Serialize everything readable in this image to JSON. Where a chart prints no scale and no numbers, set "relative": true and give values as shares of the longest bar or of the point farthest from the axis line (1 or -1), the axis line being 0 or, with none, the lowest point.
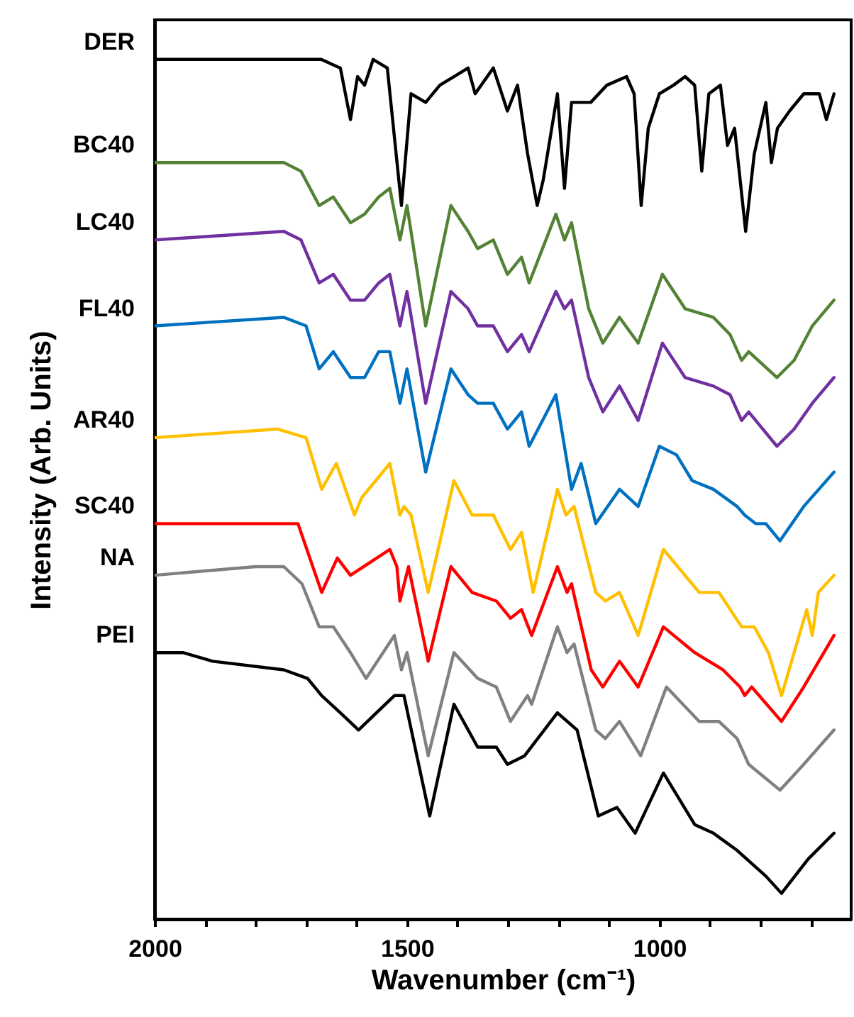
{
  "chart_data": {
    "type": "line",
    "relative": true,
    "xlabel": "Wavenumber (cm⁻¹)",
    "ylabel": "Intensity (Arb. Units)",
    "xlim": [
      2000,
      620
    ],
    "xticks": [
      2000,
      {
        "value": 1900,
        "label": null
      },
      {
        "value": 1800,
        "label": null
      },
      {
        "value": 1700,
        "label": null
      },
      {
        "value": 1600,
        "label": null
      },
      1500,
      {
        "value": 1400,
        "label": null
      },
      {
        "value": 1300,
        "label": null
      },
      {
        "value": 1200,
        "label": null
      },
      {
        "value": 1100,
        "label": null
      },
      1000,
      {
        "value": 900,
        "label": null
      },
      {
        "value": 800,
        "label": null
      },
      {
        "value": 700,
        "label": null
      }
    ],
    "series": [
      {
        "name": "DER",
        "color": "#000000",
        "x": [
          2000,
          1880,
          1670,
          1632,
          1612,
          1598,
          1584,
          1567,
          1539,
          1511,
          1492,
          1463,
          1435,
          1407,
          1379,
          1365,
          1329,
          1301,
          1281,
          1261,
          1242,
          1230,
          1202,
          1188,
          1174,
          1136,
          1104,
          1065,
          1050,
          1036,
          1022,
          1000,
          972,
          949,
          930,
          916,
          902,
          879,
          865,
          851,
          829,
          812,
          789,
          778,
          766,
          742,
          714,
          683,
          669,
          654
        ],
        "values": [
          1.0,
          1.0,
          1.0,
          0.99,
          0.93,
          0.98,
          0.97,
          1.0,
          0.99,
          0.83,
          0.96,
          0.95,
          0.97,
          0.98,
          0.99,
          0.96,
          0.99,
          0.94,
          0.97,
          0.89,
          0.83,
          0.86,
          0.96,
          0.85,
          0.95,
          0.95,
          0.97,
          0.98,
          0.96,
          0.83,
          0.92,
          0.96,
          0.97,
          0.98,
          0.97,
          0.87,
          0.96,
          0.97,
          0.9,
          0.92,
          0.8,
          0.89,
          0.95,
          0.88,
          0.92,
          0.94,
          0.96,
          0.96,
          0.93,
          0.96
        ]
      },
      {
        "name": "BC40",
        "color": "#548235",
        "x": [
          2000,
          1744,
          1710,
          1674,
          1646,
          1612,
          1584,
          1556,
          1534,
          1514,
          1500,
          1463,
          1413,
          1379,
          1360,
          1329,
          1301,
          1273,
          1258,
          1205,
          1188,
          1174,
          1140,
          1112,
          1079,
          1042,
          994,
          949,
          893,
          860,
          837,
          823,
          767,
          733,
          697,
          654
        ],
        "values": [
          0.88,
          0.88,
          0.87,
          0.83,
          0.84,
          0.81,
          0.82,
          0.84,
          0.85,
          0.79,
          0.83,
          0.69,
          0.83,
          0.8,
          0.78,
          0.79,
          0.75,
          0.77,
          0.74,
          0.82,
          0.79,
          0.81,
          0.71,
          0.67,
          0.7,
          0.67,
          0.75,
          0.71,
          0.7,
          0.68,
          0.65,
          0.66,
          0.63,
          0.65,
          0.69,
          0.72
        ]
      },
      {
        "name": "LC40",
        "color": "#7030a0",
        "x": [
          2000,
          1744,
          1710,
          1674,
          1646,
          1612,
          1584,
          1556,
          1534,
          1514,
          1500,
          1463,
          1413,
          1379,
          1360,
          1329,
          1301,
          1273,
          1258,
          1205,
          1188,
          1174,
          1140,
          1112,
          1079,
          1042,
          994,
          949,
          893,
          860,
          837,
          823,
          767,
          733,
          697,
          654
        ],
        "values": [
          0.79,
          0.8,
          0.79,
          0.74,
          0.75,
          0.72,
          0.72,
          0.74,
          0.75,
          0.69,
          0.73,
          0.6,
          0.73,
          0.71,
          0.69,
          0.69,
          0.66,
          0.68,
          0.66,
          0.73,
          0.71,
          0.72,
          0.63,
          0.59,
          0.62,
          0.58,
          0.67,
          0.63,
          0.62,
          0.61,
          0.58,
          0.59,
          0.55,
          0.57,
          0.6,
          0.63
        ]
      },
      {
        "name": "FL40",
        "color": "#0070c0",
        "x": [
          2000,
          1744,
          1700,
          1674,
          1646,
          1612,
          1584,
          1556,
          1534,
          1514,
          1500,
          1463,
          1413,
          1379,
          1360,
          1329,
          1301,
          1273,
          1258,
          1205,
          1174,
          1155,
          1126,
          1079,
          1042,
          1000,
          966,
          935,
          893,
          846,
          831,
          809,
          789,
          761,
          714,
          654
        ],
        "values": [
          0.69,
          0.7,
          0.69,
          0.64,
          0.66,
          0.63,
          0.63,
          0.66,
          0.66,
          0.6,
          0.64,
          0.52,
          0.64,
          0.61,
          0.6,
          0.6,
          0.57,
          0.59,
          0.55,
          0.61,
          0.5,
          0.53,
          0.46,
          0.5,
          0.48,
          0.55,
          0.54,
          0.51,
          0.5,
          0.48,
          0.47,
          0.46,
          0.46,
          0.44,
          0.48,
          0.52
        ]
      },
      {
        "name": "AR40",
        "color": "#ffc000",
        "x": [
          2000,
          1756,
          1700,
          1669,
          1640,
          1604,
          1590,
          1534,
          1514,
          1506,
          1492,
          1458,
          1407,
          1371,
          1329,
          1295,
          1273,
          1250,
          1202,
          1185,
          1169,
          1126,
          1107,
          1079,
          1042,
          992,
          921,
          882,
          837,
          812,
          784,
          758,
          733,
          708,
          697,
          685,
          654
        ],
        "values": [
          0.56,
          0.57,
          0.56,
          0.5,
          0.53,
          0.47,
          0.49,
          0.53,
          0.47,
          0.48,
          0.47,
          0.38,
          0.51,
          0.47,
          0.47,
          0.43,
          0.45,
          0.38,
          0.5,
          0.47,
          0.48,
          0.38,
          0.37,
          0.38,
          0.33,
          0.43,
          0.38,
          0.38,
          0.34,
          0.34,
          0.31,
          0.26,
          0.31,
          0.36,
          0.33,
          0.38,
          0.4
        ]
      },
      {
        "name": "SC40",
        "color": "#ff0000",
        "x": [
          2000,
          1744,
          1716,
          1669,
          1638,
          1612,
          1534,
          1520,
          1514,
          1497,
          1458,
          1413,
          1371,
          1323,
          1295,
          1273,
          1253,
          1202,
          1183,
          1174,
          1135,
          1112,
          1079,
          1042,
          992,
          930,
          874,
          840,
          831,
          817,
          758,
          714,
          654
        ],
        "values": [
          0.46,
          0.46,
          0.46,
          0.38,
          0.42,
          0.4,
          0.43,
          0.41,
          0.37,
          0.41,
          0.3,
          0.41,
          0.38,
          0.37,
          0.35,
          0.36,
          0.33,
          0.41,
          0.38,
          0.39,
          0.29,
          0.27,
          0.3,
          0.27,
          0.34,
          0.31,
          0.29,
          0.27,
          0.26,
          0.27,
          0.23,
          0.27,
          0.33
        ]
      },
      {
        "name": "NA",
        "color": "#808080",
        "x": [
          2000,
          1800,
          1744,
          1708,
          1674,
          1646,
          1612,
          1581,
          1525,
          1511,
          1500,
          1458,
          1407,
          1360,
          1323,
          1295,
          1261,
          1253,
          1202,
          1183,
          1169,
          1126,
          1107,
          1079,
          1037,
          986,
          921,
          882,
          846,
          823,
          761,
          714,
          654
        ],
        "values": [
          0.4,
          0.41,
          0.41,
          0.39,
          0.34,
          0.34,
          0.31,
          0.28,
          0.33,
          0.29,
          0.31,
          0.19,
          0.31,
          0.28,
          0.27,
          0.23,
          0.26,
          0.25,
          0.34,
          0.31,
          0.32,
          0.22,
          0.21,
          0.23,
          0.19,
          0.27,
          0.23,
          0.23,
          0.21,
          0.18,
          0.15,
          0.18,
          0.22
        ]
      },
      {
        "name": "PEI",
        "color": "#000000",
        "x": [
          2000,
          1944,
          1885,
          1744,
          1697,
          1669,
          1632,
          1596,
          1525,
          1506,
          1455,
          1407,
          1360,
          1323,
          1301,
          1267,
          1202,
          1163,
          1121,
          1084,
          1048,
          992,
          930,
          893,
          846,
          789,
          758,
          705,
          654
        ],
        "values": [
          0.31,
          0.31,
          0.3,
          0.29,
          0.28,
          0.26,
          0.24,
          0.22,
          0.26,
          0.26,
          0.12,
          0.25,
          0.2,
          0.2,
          0.18,
          0.19,
          0.24,
          0.22,
          0.12,
          0.13,
          0.1,
          0.17,
          0.11,
          0.1,
          0.08,
          0.05,
          0.03,
          0.07,
          0.1
        ]
      }
    ]
  }
}
